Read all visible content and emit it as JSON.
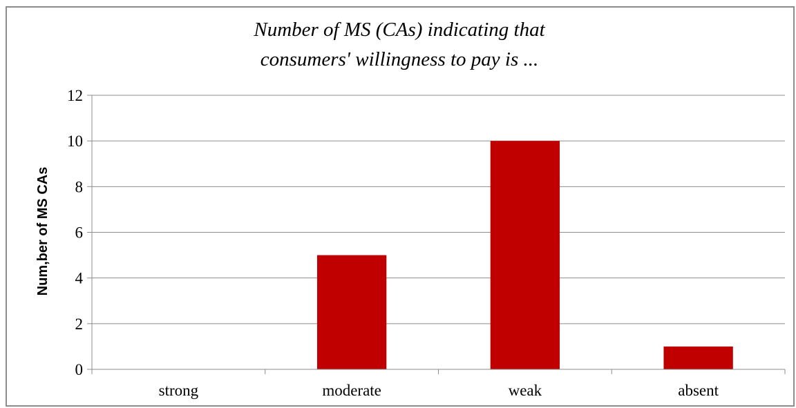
{
  "chart_data": {
    "type": "bar",
    "title_lines": [
      "Number of MS (CAs)  indicating that",
      "consumers' willingness to pay is ..."
    ],
    "ylabel": "Num,ber of MS CAs",
    "xlabel": "",
    "categories": [
      "strong",
      "moderate",
      "weak",
      "absent"
    ],
    "values": [
      0,
      5,
      10,
      1
    ],
    "ylim": [
      0,
      12
    ],
    "yticks": [
      "0",
      "2",
      "4",
      "6",
      "8",
      "10",
      "12"
    ],
    "ytick_values": [
      0,
      2,
      4,
      6,
      8,
      10,
      12
    ],
    "grid": "horizontal",
    "legend": "none",
    "colors": {
      "bar": "#c00000",
      "grid": "#8c8c8c",
      "axis": "#8c8c8c",
      "frame": "#8c8c8c"
    }
  }
}
